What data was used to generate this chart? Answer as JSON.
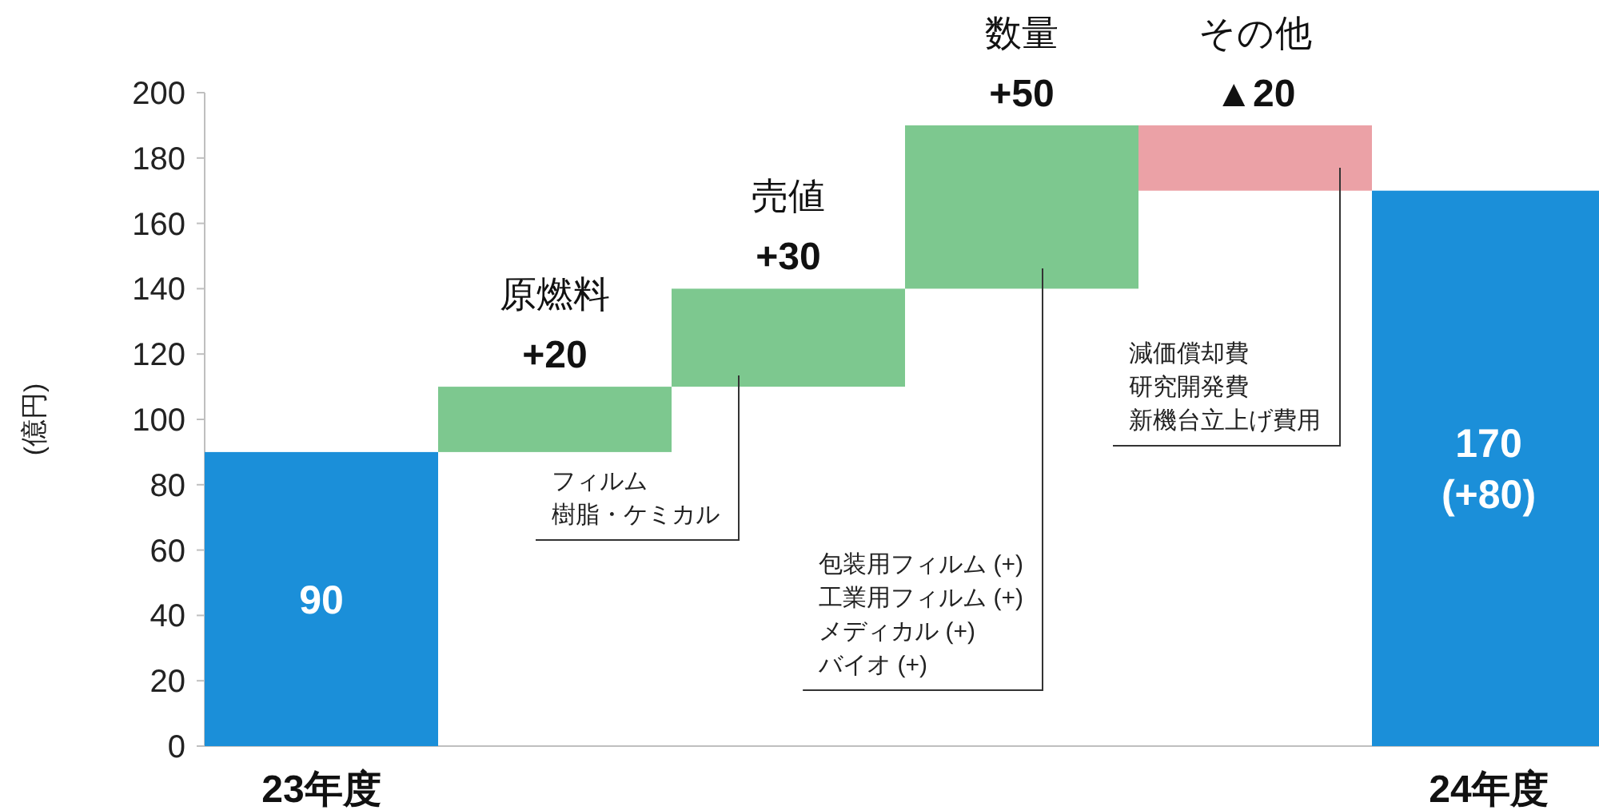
{
  "chart_data": {
    "type": "bar",
    "ylabel": "(億円)",
    "categories": [
      "23年度",
      "原燃料",
      "売値",
      "数量",
      "その他",
      "24年度"
    ],
    "values": [
      90,
      20,
      30,
      50,
      -20,
      170
    ],
    "base": [
      0,
      90,
      110,
      140,
      190,
      0
    ],
    "colors": [
      "#1b8fd9",
      "#7dc88f",
      "#7dc88f",
      "#7dc88f",
      "#eba1a6",
      "#1b8fd9"
    ],
    "value_labels": [
      "90",
      "+20",
      "+30",
      "+50",
      "▲20",
      "170\n(+80)"
    ],
    "ylim": [
      0,
      200
    ],
    "yticks": [
      0,
      20,
      40,
      60,
      80,
      100,
      120,
      140,
      160,
      180,
      200
    ],
    "annotations": [
      "フィルム",
      "樹脂・ケミカル",
      "包装用フィルム (+)",
      "工業用フィルム (+)",
      "メディカル (+)",
      "バイオ (+)",
      "減価償却費",
      "研究開発費",
      "新機台立上げ費用"
    ]
  }
}
